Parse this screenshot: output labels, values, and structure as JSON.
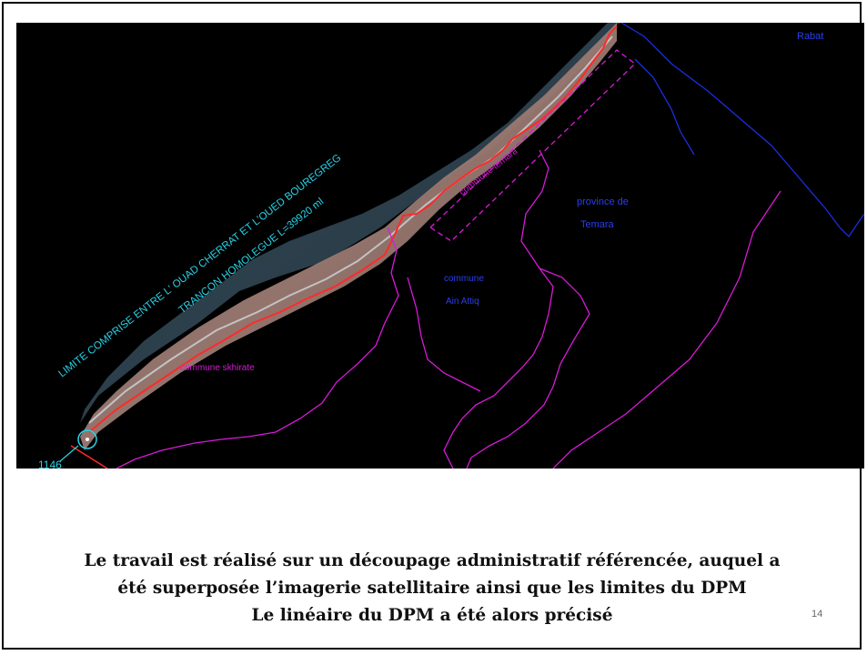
{
  "map": {
    "labels": {
      "rabat": "Rabat",
      "province_line1": "province de",
      "province_line2": "Temara",
      "ain_attiq_line1": "commune",
      "ain_attiq_line2": "Ain Attiq",
      "skhirate": "commune skhirate",
      "temara_commune": "commune temara",
      "limit_line1": "LIMITE COMPRISE ENTRE L' OUAD CHERRAT ET L'OUED BOUREGREG",
      "limit_line2": "TRANCON  HOMOLEGUE L=39920 ml",
      "marker_id": "1146"
    },
    "colors": {
      "boundary_magenta": "#d81ad8",
      "rabat_blue": "#1a2ee0",
      "dpm_red": "#ff2a2a",
      "annotation_cyan": "#29d4e8"
    }
  },
  "caption": {
    "line1": "Le travail est réalisé sur un découpage administratif  référencée, auquel a",
    "line2": "été superposée l’imagerie satellitaire ainsi que les limites du DPM",
    "line3": "Le linéaire du DPM  a été alors précisé"
  },
  "page_number": "14"
}
